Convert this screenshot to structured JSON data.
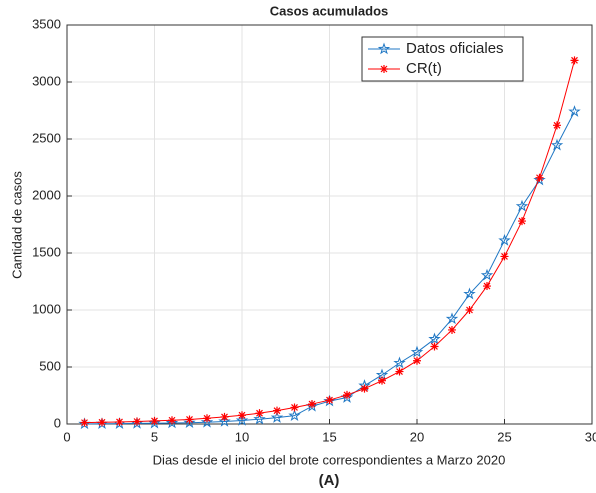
{
  "chart_data": {
    "type": "line",
    "title": "Casos acumulados",
    "x_label": "Dias desde el inicio del brote correspondientes a Marzo 2020",
    "y_label": "Cantidad de casos",
    "caption": "(A)",
    "x": [
      1,
      2,
      3,
      4,
      5,
      6,
      7,
      8,
      9,
      10,
      11,
      12,
      13,
      14,
      15,
      16,
      17,
      18,
      19,
      20,
      21,
      22,
      23,
      24,
      25,
      26,
      27,
      28,
      29
    ],
    "series": [
      {
        "name": "Datos oficiales",
        "color": "#1f77c4",
        "marker": "star",
        "values": [
          1,
          2,
          3,
          5,
          7,
          9,
          11,
          15,
          22,
          31,
          42,
          56,
          73,
          155,
          201,
          232,
          336,
          430,
          535,
          630,
          745,
          922,
          1140,
          1305,
          1610,
          1910,
          2140,
          2445,
          2740
        ]
      },
      {
        "name": "CR(t)",
        "color": "#ff0000",
        "marker": "asterisk",
        "values": [
          12,
          15,
          18,
          22,
          27,
          33,
          40,
          50,
          62,
          77,
          95,
          117,
          145,
          175,
          210,
          255,
          310,
          380,
          460,
          555,
          680,
          825,
          1000,
          1210,
          1470,
          1780,
          2160,
          2620,
          3190
        ]
      }
    ],
    "xlim": [
      0,
      30
    ],
    "xticks": [
      0,
      5,
      10,
      15,
      20,
      25,
      30
    ],
    "ylim": [
      0,
      3500
    ],
    "yticks": [
      0,
      500,
      1000,
      1500,
      2000,
      2500,
      3000,
      3500
    ],
    "grid": true,
    "legend": "upper right"
  }
}
